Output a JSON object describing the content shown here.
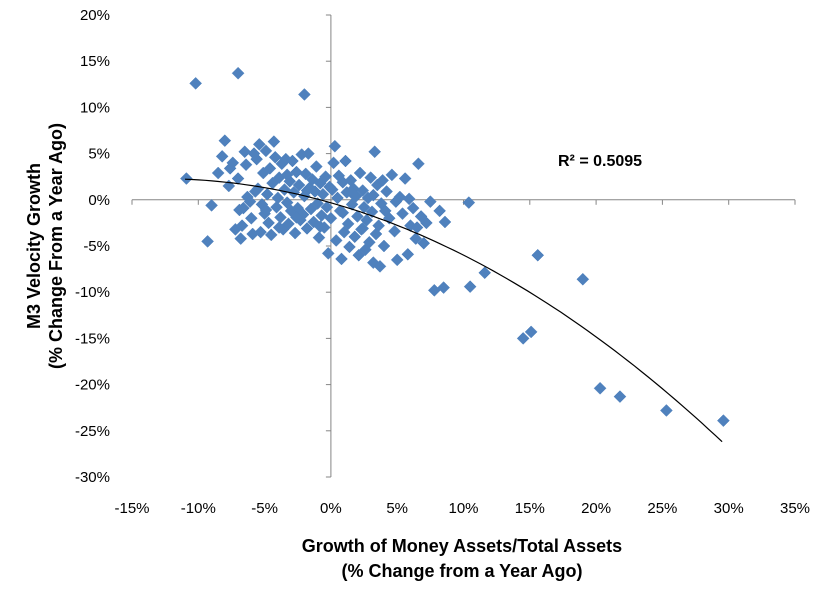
{
  "chart_data": {
    "type": "scatter",
    "title": "",
    "xlabel_line1": "Growth of Money Assets/Total Assets",
    "xlabel_line2": "(% Change from a Year Ago)",
    "ylabel_line1": "M3 Velocity Growth",
    "ylabel_line2": "(% Change From a Year Ago)",
    "xlim": [
      -15,
      35
    ],
    "ylim": [
      -30,
      20
    ],
    "x_ticks": [
      -15,
      -10,
      -5,
      0,
      5,
      10,
      15,
      20,
      25,
      30,
      35
    ],
    "y_ticks": [
      -30,
      -25,
      -20,
      -15,
      -10,
      -5,
      0,
      5,
      10,
      15,
      20
    ],
    "x_tick_labels": [
      "-15%",
      "-10%",
      "-5%",
      "0%",
      "5%",
      "10%",
      "15%",
      "20%",
      "25%",
      "30%",
      "35%"
    ],
    "y_tick_labels": [
      "-30%",
      "-25%",
      "-20%",
      "-15%",
      "-10%",
      "-5%",
      "0%",
      "5%",
      "10%",
      "15%",
      "20%"
    ],
    "grid": false,
    "marker_color": "#4F81BD",
    "trendline_color": "#000000",
    "annotation": "R² = 0.5095",
    "trendline": {
      "type": "polynomial-2",
      "x": [
        -11,
        -5,
        0,
        5,
        10,
        15,
        20,
        25,
        29.5
      ],
      "y": [
        2.2,
        1.5,
        -0.5,
        -2.8,
        -6.0,
        -10.0,
        -14.8,
        -20.3,
        -26.3
      ]
    },
    "points": [
      [
        -10.2,
        12.6
      ],
      [
        -7,
        13.7
      ],
      [
        -2,
        11.4
      ],
      [
        -10.9,
        2.3
      ],
      [
        -9.3,
        -4.5
      ],
      [
        -8.5,
        2.9
      ],
      [
        -8.2,
        4.7
      ],
      [
        -8,
        6.4
      ],
      [
        -7.6,
        3.4
      ],
      [
        -7.4,
        4.0
      ],
      [
        -7.2,
        -3.2
      ],
      [
        -7,
        2.3
      ],
      [
        -6.9,
        -1.1
      ],
      [
        -6.8,
        -4.2
      ],
      [
        -6.7,
        -2.8
      ],
      [
        -6.5,
        5.2
      ],
      [
        -6.4,
        3.8
      ],
      [
        -6.3,
        0.3
      ],
      [
        -6.1,
        -0.2
      ],
      [
        -6,
        -2.0
      ],
      [
        -5.8,
        5.0
      ],
      [
        -5.6,
        4.4
      ],
      [
        -5.5,
        1.2
      ],
      [
        -5.4,
        6.0
      ],
      [
        -5.3,
        -3.5
      ],
      [
        -5.2,
        -0.5
      ],
      [
        -5.1,
        2.9
      ],
      [
        -5,
        -1.5
      ],
      [
        -4.9,
        5.3
      ],
      [
        -4.8,
        0.6
      ],
      [
        -4.7,
        -2.5
      ],
      [
        -4.6,
        3.4
      ],
      [
        -4.5,
        -3.8
      ],
      [
        -4.4,
        1.8
      ],
      [
        -4.3,
        6.3
      ],
      [
        -4.2,
        4.6
      ],
      [
        -4.1,
        -0.8
      ],
      [
        -4,
        0.2
      ],
      [
        -3.9,
        2.4
      ],
      [
        -3.8,
        -1.9
      ],
      [
        -3.7,
        3.9
      ],
      [
        -3.6,
        -3.2
      ],
      [
        -3.5,
        1.1
      ],
      [
        -3.4,
        4.4
      ],
      [
        -3.3,
        -0.3
      ],
      [
        -3.2,
        -2.6
      ],
      [
        -3.1,
        2.0
      ],
      [
        -3,
        -1.2
      ],
      [
        -2.9,
        4.2
      ],
      [
        -2.8,
        0.8
      ],
      [
        -2.7,
        -3.6
      ],
      [
        -2.6,
        3.0
      ],
      [
        -2.5,
        -0.9
      ],
      [
        -2.4,
        1.6
      ],
      [
        -2.3,
        -2.2
      ],
      [
        -2.2,
        4.9
      ],
      [
        -2.1,
        -1.6
      ],
      [
        -2,
        0.4
      ],
      [
        -1.9,
        2.8
      ],
      [
        -1.8,
        -3.1
      ],
      [
        -1.7,
        5.0
      ],
      [
        -1.6,
        1.3
      ],
      [
        -1.5,
        -1.0
      ],
      [
        -1.4,
        2.2
      ],
      [
        -1.3,
        -2.4
      ],
      [
        -1.2,
        0.9
      ],
      [
        -1.1,
        3.6
      ],
      [
        -1,
        -0.4
      ],
      [
        -0.9,
        -4.1
      ],
      [
        -0.8,
        1.8
      ],
      [
        -0.7,
        -1.7
      ],
      [
        -0.6,
        0.6
      ],
      [
        -0.5,
        -3.0
      ],
      [
        -0.4,
        2.5
      ],
      [
        -0.3,
        -0.8
      ],
      [
        -0.2,
        -5.8
      ],
      [
        -0.1,
        1.4
      ],
      [
        0,
        -2.0
      ],
      [
        0.2,
        4.0
      ],
      [
        0.3,
        5.8
      ],
      [
        0.4,
        -4.4
      ],
      [
        0.5,
        0.2
      ],
      [
        0.6,
        2.6
      ],
      [
        0.7,
        -1.2
      ],
      [
        0.8,
        -6.4
      ],
      [
        0.9,
        1.9
      ],
      [
        1,
        -3.5
      ],
      [
        1.1,
        4.2
      ],
      [
        1.2,
        0.8
      ],
      [
        1.3,
        -2.6
      ],
      [
        1.4,
        -5.1
      ],
      [
        1.5,
        2.1
      ],
      [
        1.6,
        -0.5
      ],
      [
        1.7,
        1.2
      ],
      [
        1.8,
        -4.0
      ],
      [
        1.9,
        0.4
      ],
      [
        2,
        -1.8
      ],
      [
        2.1,
        -6.0
      ],
      [
        2.2,
        2.9
      ],
      [
        2.3,
        -3.2
      ],
      [
        2.4,
        1.0
      ],
      [
        2.5,
        -0.8
      ],
      [
        2.6,
        -5.4
      ],
      [
        2.7,
        -2.2
      ],
      [
        2.8,
        0.2
      ],
      [
        2.9,
        -4.6
      ],
      [
        3,
        2.4
      ],
      [
        3.1,
        -1.3
      ],
      [
        3.2,
        -6.8
      ],
      [
        3.3,
        5.2
      ],
      [
        3.4,
        -3.7
      ],
      [
        3.5,
        1.6
      ],
      [
        3.6,
        -2.8
      ],
      [
        3.7,
        -7.2
      ],
      [
        3.8,
        -0.4
      ],
      [
        3.9,
        2.1
      ],
      [
        4,
        -5.0
      ],
      [
        4.2,
        0.9
      ],
      [
        4.4,
        -2.0
      ],
      [
        4.6,
        2.7
      ],
      [
        4.8,
        -3.4
      ],
      [
        5,
        -6.5
      ],
      [
        5.2,
        0.3
      ],
      [
        5.4,
        -1.5
      ],
      [
        5.6,
        2.3
      ],
      [
        5.8,
        -5.9
      ],
      [
        6,
        -2.8
      ],
      [
        6.2,
        -0.9
      ],
      [
        6.4,
        -4.2
      ],
      [
        6.6,
        3.9
      ],
      [
        6.8,
        -1.8
      ],
      [
        7,
        -4.7
      ],
      [
        7.2,
        -2.5
      ],
      [
        7.5,
        -0.2
      ],
      [
        7.8,
        -9.8
      ],
      [
        8.2,
        -1.2
      ],
      [
        8.5,
        -9.5
      ],
      [
        8.6,
        -2.4
      ],
      [
        10.4,
        -0.3
      ],
      [
        10.5,
        -9.4
      ],
      [
        11.6,
        -7.9
      ],
      [
        14.5,
        -15.0
      ],
      [
        15.1,
        -14.3
      ],
      [
        15.6,
        -6.0
      ],
      [
        19.0,
        -8.6
      ],
      [
        20.3,
        -20.4
      ],
      [
        21.8,
        -21.3
      ],
      [
        25.3,
        -22.8
      ],
      [
        29.6,
        -23.9
      ],
      [
        -9,
        -0.6
      ],
      [
        -7.7,
        1.5
      ],
      [
        -6.6,
        -0.9
      ],
      [
        -5.9,
        -3.7
      ],
      [
        -5.7,
        0.9
      ],
      [
        -4.9,
        -1.1
      ],
      [
        -3.9,
        -3.0
      ],
      [
        -3.3,
        2.7
      ],
      [
        -2.6,
        -1.9
      ],
      [
        -1.8,
        1.0
      ],
      [
        -0.8,
        -2.9
      ],
      [
        0.1,
        1.1
      ],
      [
        0.9,
        -1.4
      ],
      [
        1.6,
        0.7
      ],
      [
        2.4,
        -3.1
      ],
      [
        3.2,
        0.5
      ],
      [
        4.1,
        -1.2
      ],
      [
        4.9,
        -0.2
      ],
      [
        5.9,
        0.1
      ],
      [
        6.5,
        -3.0
      ]
    ]
  }
}
